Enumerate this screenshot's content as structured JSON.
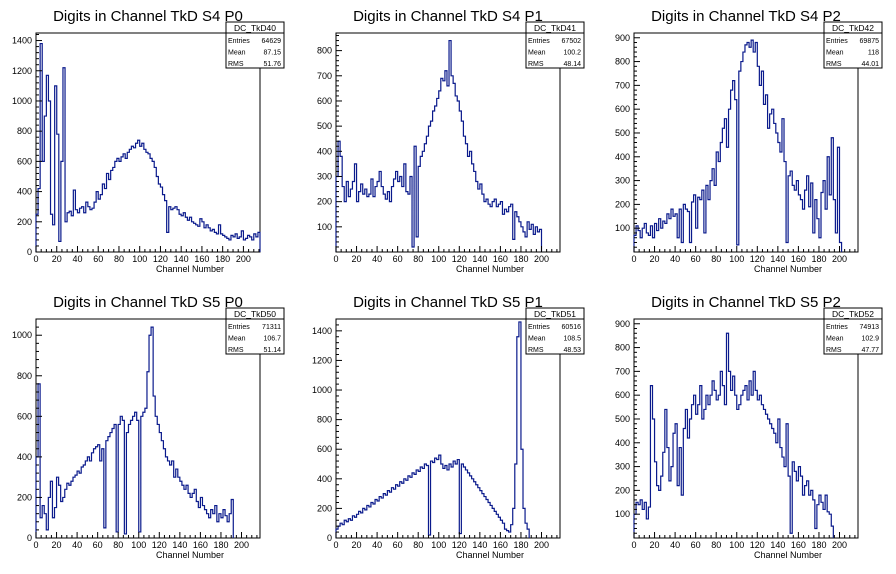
{
  "x_axis_label": "Channel Number",
  "chart_data": [
    {
      "type": "histogram",
      "title": "Digits in Channel TkD S4 P0",
      "stats": {
        "name": "DC_TkD40",
        "entries": "64629",
        "mean": "87.15",
        "rms": "51.76"
      },
      "xlabel": "Channel Number",
      "xlim": [
        0,
        216
      ],
      "ylim": [
        0,
        1450
      ],
      "x_ticks": [
        0,
        20,
        40,
        60,
        80,
        100,
        120,
        140,
        160,
        180,
        200
      ],
      "y_ticks": [
        0,
        200,
        400,
        600,
        800,
        1000,
        1200,
        1400
      ],
      "bin_width": 2,
      "values": [
        250,
        420,
        1380,
        600,
        900,
        1170,
        1000,
        250,
        180,
        1100,
        780,
        70,
        600,
        1220,
        200,
        260,
        270,
        240,
        410,
        280,
        260,
        290,
        300,
        260,
        330,
        300,
        280,
        290,
        330,
        400,
        350,
        380,
        450,
        420,
        520,
        480,
        540,
        560,
        600,
        620,
        600,
        630,
        650,
        620,
        660,
        680,
        700,
        690,
        720,
        740,
        700,
        720,
        680,
        660,
        650,
        620,
        600,
        560,
        500,
        450,
        430,
        380,
        340,
        130,
        300,
        280,
        290,
        300,
        280,
        250,
        240,
        260,
        230,
        210,
        230,
        200,
        190,
        180,
        170,
        220,
        200,
        160,
        180,
        160,
        140,
        150,
        130,
        120,
        180,
        120,
        110,
        100,
        90,
        80,
        110,
        100,
        120,
        90,
        100,
        140,
        80,
        90,
        110,
        100,
        80,
        120,
        100,
        130
      ]
    },
    {
      "type": "histogram",
      "title": "Digits in Channel TkD S4 P1",
      "stats": {
        "name": "DC_TkD41",
        "entries": "67502",
        "mean": "100.2",
        "rms": "48.14"
      },
      "xlabel": "Channel Number",
      "xlim": [
        0,
        218
      ],
      "ylim": [
        0,
        870
      ],
      "x_ticks": [
        0,
        20,
        40,
        60,
        80,
        100,
        120,
        140,
        160,
        180,
        200
      ],
      "y_ticks": [
        100,
        200,
        300,
        400,
        500,
        600,
        700,
        800
      ],
      "bin_width": 2,
      "values": [
        300,
        440,
        380,
        260,
        200,
        280,
        220,
        250,
        280,
        350,
        200,
        240,
        270,
        230,
        250,
        220,
        230,
        290,
        220,
        260,
        280,
        320,
        260,
        230,
        210,
        240,
        200,
        260,
        290,
        320,
        280,
        300,
        260,
        350,
        240,
        230,
        300,
        20,
        420,
        60,
        340,
        380,
        400,
        430,
        460,
        500,
        520,
        560,
        580,
        610,
        640,
        690,
        680,
        720,
        660,
        840,
        700,
        670,
        620,
        600,
        560,
        520,
        460,
        430,
        380,
        400,
        350,
        320,
        280,
        250,
        270,
        230,
        200,
        210,
        190,
        180,
        200,
        210,
        180,
        190,
        200,
        150,
        170,
        160,
        180,
        190,
        50,
        160,
        140,
        120,
        100,
        80,
        60,
        120,
        90,
        110,
        70,
        100,
        80,
        90
      ]
    },
    {
      "type": "histogram",
      "title": "Digits in Channel TkD S4 P2",
      "stats": {
        "name": "DC_TkD42",
        "entries": "69875",
        "mean": "118",
        "rms": "44.01"
      },
      "xlabel": "Channel Number",
      "xlim": [
        0,
        218
      ],
      "ylim": [
        0,
        920
      ],
      "x_ticks": [
        0,
        20,
        40,
        60,
        80,
        100,
        120,
        140,
        160,
        180,
        200
      ],
      "y_ticks": [
        100,
        200,
        300,
        400,
        500,
        600,
        700,
        800,
        900
      ],
      "bin_width": 2,
      "values": [
        70,
        110,
        90,
        60,
        100,
        120,
        80,
        70,
        110,
        60,
        120,
        90,
        140,
        100,
        130,
        120,
        160,
        140,
        180,
        150,
        160,
        60,
        180,
        40,
        200,
        180,
        170,
        40,
        210,
        240,
        100,
        230,
        220,
        260,
        80,
        280,
        220,
        300,
        350,
        280,
        420,
        380,
        460,
        520,
        560,
        440,
        600,
        680,
        720,
        640,
        30,
        760,
        800,
        840,
        870,
        880,
        860,
        890,
        840,
        880,
        780,
        700,
        760,
        620,
        660,
        520,
        580,
        600,
        540,
        500,
        460,
        420,
        560,
        380,
        40,
        320,
        340,
        280,
        260,
        300,
        240,
        220,
        180,
        260,
        320,
        190,
        290,
        80,
        220,
        140,
        60,
        250,
        300,
        180,
        400,
        240,
        480,
        220,
        80,
        440,
        40
      ]
    },
    {
      "type": "histogram",
      "title": "Digits in Channel TkD S5 P0",
      "stats": {
        "name": "DC_TkD50",
        "entries": "71311",
        "mean": "106.7",
        "rms": "51.14"
      },
      "xlabel": "Channel Number",
      "xlim": [
        0,
        218
      ],
      "ylim": [
        0,
        1080
      ],
      "x_ticks": [
        0,
        20,
        40,
        60,
        80,
        100,
        120,
        140,
        160,
        180,
        200
      ],
      "y_ticks": [
        0,
        200,
        400,
        600,
        800,
        1000
      ],
      "bin_width": 2,
      "values": [
        400,
        760,
        100,
        160,
        120,
        40,
        200,
        280,
        100,
        150,
        300,
        260,
        180,
        200,
        240,
        270,
        260,
        280,
        300,
        310,
        330,
        320,
        350,
        360,
        380,
        400,
        380,
        420,
        440,
        450,
        460,
        380,
        440,
        50,
        480,
        500,
        520,
        540,
        560,
        30,
        560,
        600,
        580,
        20,
        520,
        560,
        580,
        600,
        620,
        580,
        30,
        600,
        620,
        640,
        820,
        1000,
        1040,
        700,
        600,
        560,
        520,
        480,
        440,
        400,
        380,
        360,
        380,
        300,
        340,
        300,
        280,
        260,
        240,
        260,
        220,
        200,
        220,
        240,
        180,
        150,
        200,
        160,
        140,
        120,
        100,
        140,
        120,
        160,
        80,
        120,
        100,
        140,
        110,
        80,
        120,
        190
      ]
    },
    {
      "type": "histogram",
      "title": "Digits in Channel TkD S5 P1",
      "stats": {
        "name": "DC_TkD51",
        "entries": "60516",
        "mean": "108.5",
        "rms": "48.53"
      },
      "xlabel": "Channel Number",
      "xlim": [
        0,
        218
      ],
      "ylim": [
        0,
        1480
      ],
      "x_ticks": [
        0,
        20,
        40,
        60,
        80,
        100,
        120,
        140,
        160,
        180,
        200
      ],
      "y_ticks": [
        0,
        200,
        400,
        600,
        800,
        1000,
        1200,
        1400
      ],
      "bin_width": 2,
      "values": [
        60,
        80,
        100,
        90,
        120,
        110,
        130,
        120,
        150,
        140,
        160,
        180,
        170,
        200,
        190,
        220,
        210,
        240,
        230,
        260,
        250,
        280,
        270,
        300,
        290,
        320,
        310,
        340,
        330,
        360,
        350,
        380,
        370,
        400,
        390,
        420,
        410,
        440,
        430,
        460,
        450,
        480,
        470,
        500,
        490,
        20,
        520,
        510,
        540,
        530,
        560,
        500,
        470,
        490,
        460,
        500,
        480,
        520,
        500,
        530,
        30,
        500,
        480,
        460,
        440,
        420,
        400,
        380,
        360,
        340,
        320,
        300,
        280,
        260,
        240,
        220,
        200,
        180,
        160,
        140,
        120,
        100,
        60,
        50,
        40,
        90,
        200,
        500,
        1360,
        1460,
        600,
        200,
        100,
        60
      ]
    },
    {
      "type": "histogram",
      "title": "Digits in Channel TkD S5 P2",
      "stats": {
        "name": "DC_TkD52",
        "entries": "74913",
        "mean": "102.9",
        "rms": "47.77"
      },
      "xlabel": "Channel Number",
      "xlim": [
        0,
        218
      ],
      "ylim": [
        0,
        920
      ],
      "x_ticks": [
        0,
        20,
        40,
        60,
        80,
        100,
        120,
        140,
        160,
        180,
        200
      ],
      "y_ticks": [
        100,
        200,
        300,
        400,
        500,
        600,
        700,
        800,
        900
      ],
      "bin_width": 2,
      "values": [
        100,
        150,
        140,
        160,
        120,
        150,
        80,
        130,
        640,
        500,
        320,
        220,
        200,
        260,
        360,
        540,
        380,
        240,
        300,
        440,
        480,
        220,
        380,
        180,
        460,
        540,
        420,
        500,
        560,
        600,
        520,
        560,
        640,
        500,
        540,
        600,
        560,
        600,
        660,
        620,
        580,
        600,
        700,
        640,
        560,
        860,
        700,
        620,
        680,
        600,
        540,
        560,
        600,
        620,
        640,
        580,
        660,
        600,
        700,
        620,
        580,
        600,
        560,
        540,
        520,
        500,
        480,
        460,
        440,
        400,
        500,
        380,
        340,
        300,
        480,
        260,
        20,
        320,
        280,
        240,
        300,
        260,
        180,
        220,
        240,
        180,
        200,
        160,
        40,
        140,
        180,
        150,
        120,
        180,
        110,
        100,
        50
      ]
    }
  ]
}
